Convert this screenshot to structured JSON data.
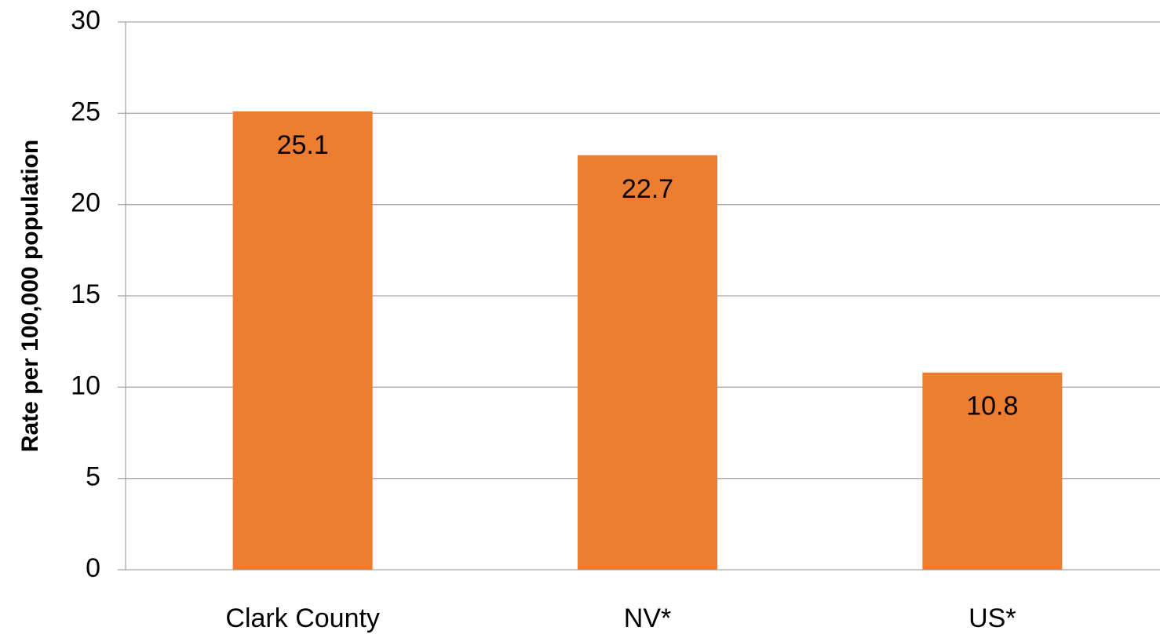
{
  "chart_data": {
    "type": "bar",
    "y_label": "Rate per 100,000 population",
    "categories": [
      "Clark County",
      "NV*",
      "US*"
    ],
    "values": [
      25.1,
      22.7,
      10.8
    ],
    "color": "#ed7d31",
    "ylim": [
      0,
      30
    ],
    "yticks": [
      0,
      5,
      10,
      15,
      20,
      25,
      30
    ],
    "grid": true
  }
}
